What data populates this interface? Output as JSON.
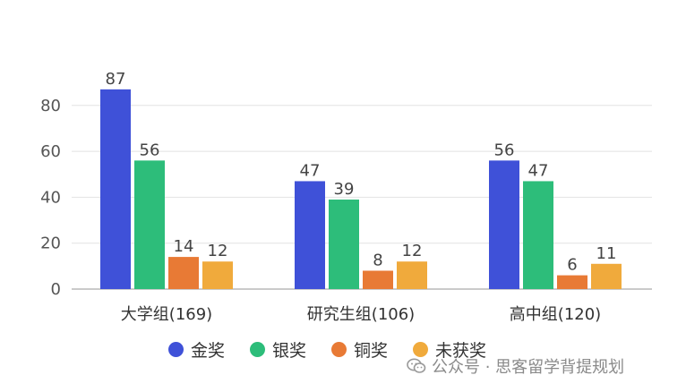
{
  "chart_data": {
    "type": "bar",
    "categories": [
      "大学组(169)",
      "研究生组(106)",
      "高中组(120)"
    ],
    "series": [
      {
        "name": "金奖",
        "values": [
          87,
          47,
          56
        ],
        "color": "#3f51d8"
      },
      {
        "name": "银奖",
        "values": [
          56,
          39,
          47
        ],
        "color": "#2dbd7a"
      },
      {
        "name": "铜奖",
        "values": [
          14,
          8,
          6
        ],
        "color": "#e87a35"
      },
      {
        "name": "未获奖",
        "values": [
          12,
          12,
          11
        ],
        "color": "#f0aa3c"
      }
    ],
    "yticks": [
      0,
      20,
      40,
      60,
      80
    ],
    "ylim": [
      0,
      90
    ],
    "grid": true,
    "legend_position": "bottom",
    "title": "",
    "xlabel": "",
    "ylabel": ""
  },
  "watermark": {
    "text": "公众号 · 思客留学背提规划",
    "icon": "wechat-icon"
  }
}
